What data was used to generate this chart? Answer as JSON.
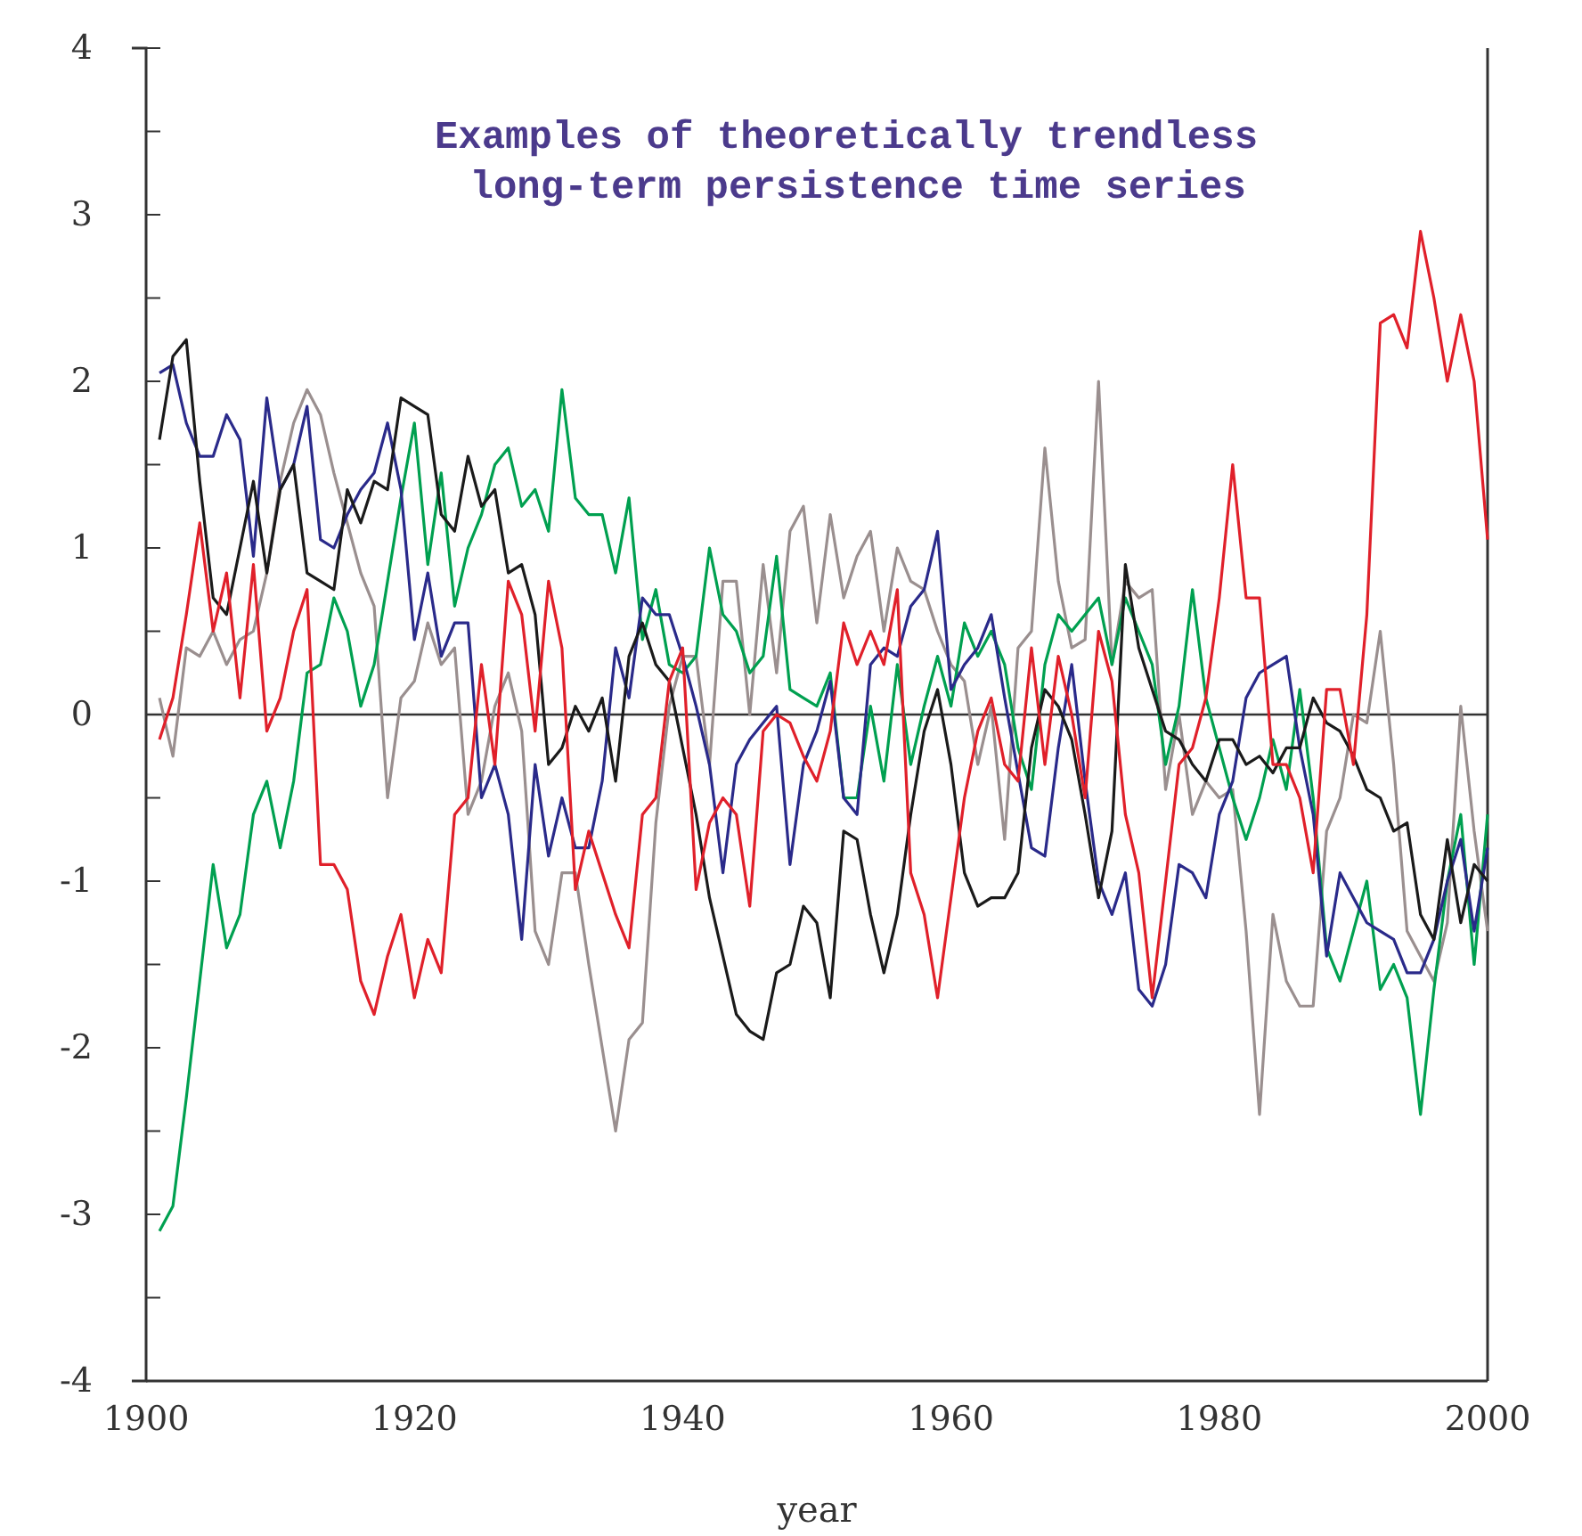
{
  "chart_data": {
    "type": "line",
    "title": "Examples of theoretically trendless\n long-term persistence time series",
    "xlabel": "year",
    "x": [
      1901,
      1902,
      1903,
      1904,
      1905,
      1906,
      1907,
      1908,
      1909,
      1910,
      1911,
      1912,
      1913,
      1914,
      1915,
      1916,
      1917,
      1918,
      1919,
      1920,
      1921,
      1922,
      1923,
      1924,
      1925,
      1926,
      1927,
      1928,
      1929,
      1930,
      1931,
      1932,
      1933,
      1934,
      1935,
      1936,
      1937,
      1938,
      1939,
      1940,
      1941,
      1942,
      1943,
      1944,
      1945,
      1946,
      1947,
      1948,
      1949,
      1950,
      1951,
      1952,
      1953,
      1954,
      1955,
      1956,
      1957,
      1958,
      1959,
      1960,
      1961,
      1962,
      1963,
      1964,
      1965,
      1966,
      1967,
      1968,
      1969,
      1970,
      1971,
      1972,
      1973,
      1974,
      1975,
      1976,
      1977,
      1978,
      1979,
      1980,
      1981,
      1982,
      1983,
      1984,
      1985,
      1986,
      1987,
      1988,
      1989,
      1990,
      1991,
      1992,
      1993,
      1994,
      1995,
      1996,
      1997,
      1998,
      1999,
      2000
    ],
    "series": [
      {
        "color": "#9a8f8f",
        "values": [
          0.1,
          -0.25,
          0.4,
          0.35,
          0.5,
          0.3,
          0.45,
          0.5,
          0.85,
          1.4,
          1.75,
          1.95,
          1.8,
          1.45,
          1.15,
          0.85,
          0.65,
          -0.5,
          0.1,
          0.2,
          0.55,
          0.3,
          0.4,
          -0.6,
          -0.4,
          0.05,
          0.25,
          -0.1,
          -1.3,
          -1.5,
          -0.95,
          -0.95,
          -1.5,
          -2.0,
          -2.5,
          -1.95,
          -1.85,
          -0.65,
          0.05,
          0.35,
          0.35,
          -0.3,
          0.8,
          0.8,
          0.0,
          0.9,
          0.25,
          1.1,
          1.25,
          0.55,
          1.2,
          0.7,
          0.95,
          1.1,
          0.5,
          1.0,
          0.8,
          0.75,
          0.5,
          0.3,
          0.2,
          -0.3,
          0.05,
          -0.75,
          0.4,
          0.5,
          1.6,
          0.8,
          0.4,
          0.45,
          2.0,
          0.3,
          0.8,
          0.7,
          0.75,
          -0.45,
          0.0,
          -0.6,
          -0.4,
          -0.5,
          -0.45,
          -1.3,
          -2.4,
          -1.2,
          -1.6,
          -1.75,
          -1.75,
          -0.7,
          -0.5,
          0.0,
          -0.05,
          0.5,
          -0.3,
          -1.3,
          -1.45,
          -1.6,
          -1.25,
          0.05,
          -0.7,
          -1.3
        ]
      },
      {
        "color": "#00a050",
        "values": [
          -3.1,
          -2.95,
          -2.3,
          -1.6,
          -0.9,
          -1.4,
          -1.2,
          -0.6,
          -0.4,
          -0.8,
          -0.4,
          0.25,
          0.3,
          0.7,
          0.5,
          0.05,
          0.3,
          0.8,
          1.3,
          1.75,
          0.9,
          1.45,
          0.65,
          1.0,
          1.2,
          1.5,
          1.6,
          1.25,
          1.35,
          1.1,
          1.95,
          1.3,
          1.2,
          1.2,
          0.85,
          1.3,
          0.45,
          0.75,
          0.3,
          0.25,
          0.35,
          1.0,
          0.6,
          0.5,
          0.25,
          0.35,
          0.95,
          0.15,
          0.1,
          0.05,
          0.25,
          -0.5,
          -0.5,
          0.05,
          -0.4,
          0.3,
          -0.3,
          0.05,
          0.35,
          0.05,
          0.55,
          0.35,
          0.5,
          0.3,
          -0.2,
          -0.45,
          0.3,
          0.6,
          0.5,
          0.6,
          0.7,
          0.3,
          0.7,
          0.5,
          0.3,
          -0.3,
          0.05,
          0.75,
          0.1,
          -0.2,
          -0.5,
          -0.75,
          -0.5,
          -0.15,
          -0.45,
          0.15,
          -0.5,
          -1.4,
          -1.6,
          -1.3,
          -1.0,
          -1.65,
          -1.5,
          -1.7,
          -2.4,
          -1.65,
          -1.0,
          -0.6,
          -1.5,
          -0.6
        ]
      },
      {
        "color": "#2a2a8a",
        "values": [
          2.05,
          2.1,
          1.75,
          1.55,
          1.55,
          1.8,
          1.65,
          0.95,
          1.9,
          1.35,
          1.5,
          1.85,
          1.05,
          1.0,
          1.2,
          1.35,
          1.45,
          1.75,
          1.35,
          0.45,
          0.85,
          0.35,
          0.55,
          0.55,
          -0.5,
          -0.3,
          -0.6,
          -1.35,
          -0.3,
          -0.85,
          -0.5,
          -0.8,
          -0.8,
          -0.4,
          0.4,
          0.1,
          0.7,
          0.6,
          0.6,
          0.35,
          0.05,
          -0.3,
          -0.95,
          -0.3,
          -0.15,
          -0.05,
          0.05,
          -0.9,
          -0.3,
          -0.1,
          0.2,
          -0.5,
          -0.6,
          0.3,
          0.4,
          0.35,
          0.65,
          0.75,
          1.1,
          0.15,
          0.3,
          0.4,
          0.6,
          0.1,
          -0.35,
          -0.8,
          -0.85,
          -0.2,
          0.3,
          -0.4,
          -1.0,
          -1.2,
          -0.95,
          -1.65,
          -1.75,
          -1.5,
          -0.9,
          -0.95,
          -1.1,
          -0.6,
          -0.4,
          0.1,
          0.25,
          0.3,
          0.35,
          -0.2,
          -0.6,
          -1.45,
          -0.95,
          -1.1,
          -1.25,
          -1.3,
          -1.35,
          -1.55,
          -1.55,
          -1.35,
          -1.0,
          -0.75,
          -1.3,
          -0.8
        ]
      },
      {
        "color": "#1a1a1a",
        "values": [
          1.65,
          2.15,
          2.25,
          1.4,
          0.7,
          0.6,
          1.0,
          1.4,
          0.85,
          1.35,
          1.5,
          0.85,
          0.8,
          0.75,
          1.35,
          1.15,
          1.4,
          1.35,
          1.9,
          1.85,
          1.8,
          1.2,
          1.1,
          1.55,
          1.25,
          1.35,
          0.85,
          0.9,
          0.6,
          -0.3,
          -0.2,
          0.05,
          -0.1,
          0.1,
          -0.4,
          0.35,
          0.55,
          0.3,
          0.2,
          -0.2,
          -0.6,
          -1.1,
          -1.45,
          -1.8,
          -1.9,
          -1.95,
          -1.55,
          -1.5,
          -1.15,
          -1.25,
          -1.7,
          -0.7,
          -0.75,
          -1.2,
          -1.55,
          -1.2,
          -0.6,
          -0.1,
          0.15,
          -0.3,
          -0.95,
          -1.15,
          -1.1,
          -1.1,
          -0.95,
          -0.2,
          0.15,
          0.05,
          -0.15,
          -0.6,
          -1.1,
          -0.7,
          0.9,
          0.4,
          0.15,
          -0.1,
          -0.15,
          -0.3,
          -0.4,
          -0.15,
          -0.15,
          -0.3,
          -0.25,
          -0.35,
          -0.2,
          -0.2,
          0.1,
          -0.05,
          -0.1,
          -0.25,
          -0.45,
          -0.5,
          -0.7,
          -0.65,
          -1.2,
          -1.35,
          -0.75,
          -1.25,
          -0.9,
          -1.0
        ]
      },
      {
        "color": "#e0202a",
        "values": [
          -0.15,
          0.1,
          0.6,
          1.15,
          0.5,
          0.85,
          0.1,
          0.9,
          -0.1,
          0.1,
          0.5,
          0.75,
          -0.9,
          -0.9,
          -1.05,
          -1.6,
          -1.8,
          -1.45,
          -1.2,
          -1.7,
          -1.35,
          -1.55,
          -0.6,
          -0.5,
          0.3,
          -0.3,
          0.8,
          0.6,
          -0.1,
          0.8,
          0.4,
          -1.05,
          -0.7,
          -0.95,
          -1.2,
          -1.4,
          -0.6,
          -0.5,
          0.2,
          0.4,
          -1.05,
          -0.65,
          -0.5,
          -0.6,
          -1.15,
          -0.1,
          0.0,
          -0.05,
          -0.25,
          -0.4,
          -0.1,
          0.55,
          0.3,
          0.5,
          0.3,
          0.75,
          -0.95,
          -1.2,
          -1.7,
          -1.1,
          -0.5,
          -0.1,
          0.1,
          -0.3,
          -0.4,
          0.4,
          -0.3,
          0.35,
          0.0,
          -0.5,
          0.5,
          0.2,
          -0.6,
          -0.95,
          -1.7,
          -1.0,
          -0.3,
          -0.2,
          0.1,
          0.7,
          1.5,
          0.7,
          0.7,
          -0.3,
          -0.3,
          -0.5,
          -0.95,
          0.15,
          0.15,
          -0.3,
          0.6,
          2.35,
          2.4,
          2.2,
          2.9,
          2.5,
          2.0,
          2.4,
          2.0,
          1.05
        ]
      }
    ],
    "xlim": [
      1900,
      2000
    ],
    "xticks": [
      1900,
      1920,
      1940,
      1960,
      1980,
      2000
    ],
    "ylim": [
      -4,
      4
    ],
    "yticks": [
      -4,
      {
        "value": -3.5,
        "label": null
      },
      -3,
      {
        "value": -2.5,
        "label": null
      },
      -2,
      {
        "value": -1.5,
        "label": null
      },
      -1,
      {
        "value": -0.5,
        "label": null
      },
      0,
      {
        "value": 0.5,
        "label": null
      },
      1,
      {
        "value": 1.5,
        "label": null
      },
      2,
      {
        "value": 2.5,
        "label": null
      },
      3,
      {
        "value": 3.5,
        "label": null
      },
      4
    ],
    "ref_lines": [
      {
        "axis": "y",
        "value": 0,
        "color": "#333333"
      }
    ],
    "marker": "none",
    "line_style": "solid"
  }
}
